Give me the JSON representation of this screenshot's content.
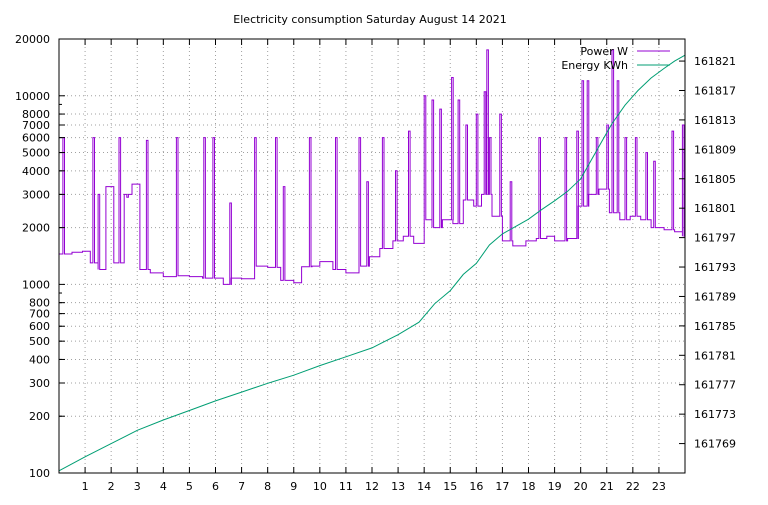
{
  "chart_data": {
    "type": "line",
    "title": "Electricity consumption Saturday August 14 2021",
    "x": {
      "label": "",
      "range": [
        0,
        24
      ],
      "ticks": [
        1,
        2,
        3,
        4,
        5,
        6,
        7,
        8,
        9,
        10,
        11,
        12,
        13,
        14,
        15,
        16,
        17,
        18,
        19,
        20,
        21,
        22,
        23
      ],
      "grid": true
    },
    "y_left": {
      "label": "",
      "scale": "log",
      "range": [
        100,
        20000
      ],
      "ticks": [
        {
          "value": 100,
          "label": "100"
        },
        {
          "value": 200,
          "label": "200"
        },
        {
          "value": 300,
          "label": "300"
        },
        {
          "value": 400,
          "label": "400"
        },
        {
          "value": 500,
          "label": "500"
        },
        {
          "value": 600,
          "label": "600"
        },
        {
          "value": 700,
          "label": "700"
        },
        {
          "value": 800,
          "label": "800"
        },
        {
          "value": 1000,
          "label": "1000"
        },
        {
          "value": 2000,
          "label": "2000"
        },
        {
          "value": 3000,
          "label": "3000"
        },
        {
          "value": 4000,
          "label": "4000"
        },
        {
          "value": 5000,
          "label": "5000"
        },
        {
          "value": 6000,
          "label": "6000"
        },
        {
          "value": 7000,
          "label": "7000"
        },
        {
          "value": 8000,
          "label": "8000"
        },
        {
          "value": 10000,
          "label": "10000"
        },
        {
          "value": 20000,
          "label": "20000"
        }
      ],
      "grid": true
    },
    "y_right": {
      "label": "",
      "scale": "linear",
      "range": [
        161765,
        161824
      ],
      "ticks": [
        161769,
        161773,
        161777,
        161781,
        161785,
        161789,
        161793,
        161797,
        161801,
        161805,
        161809,
        161813,
        161817,
        161821
      ]
    },
    "legend": {
      "placement": "top-right",
      "entries": [
        {
          "name": "Power W",
          "color": "#9400d3"
        },
        {
          "name": "Energy KWh",
          "color": "#009e73"
        }
      ]
    },
    "series": [
      {
        "name": "Power W",
        "axis": "left",
        "color": "#9400d3",
        "baseline": [
          [
            0.0,
            1450
          ],
          [
            0.5,
            1480
          ],
          [
            0.9,
            1500
          ],
          [
            1.2,
            1300
          ],
          [
            1.5,
            1200
          ],
          [
            1.8,
            3300
          ],
          [
            2.1,
            1300
          ],
          [
            2.5,
            3000
          ],
          [
            2.8,
            3400
          ],
          [
            3.1,
            1200
          ],
          [
            3.5,
            1150
          ],
          [
            4.0,
            1100
          ],
          [
            4.5,
            1110
          ],
          [
            5.0,
            1100
          ],
          [
            5.5,
            1080
          ],
          [
            6.0,
            1080
          ],
          [
            6.3,
            1000
          ],
          [
            6.6,
            1080
          ],
          [
            7.0,
            1070
          ],
          [
            7.5,
            1250
          ],
          [
            8.0,
            1230
          ],
          [
            8.5,
            1050
          ],
          [
            9.0,
            1020
          ],
          [
            9.3,
            1240
          ],
          [
            9.7,
            1250
          ],
          [
            10.0,
            1320
          ],
          [
            10.5,
            1200
          ],
          [
            11.0,
            1150
          ],
          [
            11.5,
            1250
          ],
          [
            11.9,
            1400
          ],
          [
            12.3,
            1550
          ],
          [
            12.8,
            1700
          ],
          [
            13.2,
            1800
          ],
          [
            13.6,
            1650
          ],
          [
            14.0,
            2200
          ],
          [
            14.3,
            2000
          ],
          [
            14.7,
            2200
          ],
          [
            15.1,
            2100
          ],
          [
            15.5,
            2800
          ],
          [
            15.9,
            2600
          ],
          [
            16.2,
            3000
          ],
          [
            16.6,
            2300
          ],
          [
            17.0,
            1700
          ],
          [
            17.4,
            1600
          ],
          [
            17.9,
            1700
          ],
          [
            18.3,
            1750
          ],
          [
            18.7,
            1800
          ],
          [
            19.0,
            1700
          ],
          [
            19.5,
            1750
          ],
          [
            19.9,
            2600
          ],
          [
            20.3,
            3000
          ],
          [
            20.7,
            3200
          ],
          [
            21.1,
            2400
          ],
          [
            21.5,
            2200
          ],
          [
            21.9,
            2300
          ],
          [
            22.3,
            2200
          ],
          [
            22.7,
            2000
          ],
          [
            23.2,
            1950
          ],
          [
            23.6,
            1900
          ],
          [
            23.9,
            1800
          ]
        ],
        "spikes": [
          [
            0.15,
            6000
          ],
          [
            1.3,
            6000
          ],
          [
            1.5,
            3000
          ],
          [
            2.3,
            6000
          ],
          [
            2.6,
            2900
          ],
          [
            3.35,
            5800
          ],
          [
            4.5,
            6000
          ],
          [
            5.55,
            6000
          ],
          [
            5.9,
            6000
          ],
          [
            6.55,
            2700
          ],
          [
            7.5,
            6000
          ],
          [
            8.3,
            6000
          ],
          [
            8.6,
            3300
          ],
          [
            9.6,
            6000
          ],
          [
            10.6,
            6000
          ],
          [
            11.5,
            6000
          ],
          [
            11.8,
            3500
          ],
          [
            12.4,
            6000
          ],
          [
            12.9,
            4000
          ],
          [
            13.4,
            6500
          ],
          [
            14.0,
            10000
          ],
          [
            14.3,
            9500
          ],
          [
            14.6,
            8500
          ],
          [
            15.05,
            12500
          ],
          [
            15.3,
            9500
          ],
          [
            15.6,
            7000
          ],
          [
            16.0,
            8000
          ],
          [
            16.3,
            10500
          ],
          [
            16.4,
            17500
          ],
          [
            16.5,
            6000
          ],
          [
            16.9,
            8000
          ],
          [
            17.3,
            3500
          ],
          [
            18.4,
            6000
          ],
          [
            19.4,
            6000
          ],
          [
            19.85,
            6500
          ],
          [
            20.05,
            12000
          ],
          [
            20.25,
            12000
          ],
          [
            20.6,
            6000
          ],
          [
            21.0,
            7000
          ],
          [
            21.2,
            17500
          ],
          [
            21.4,
            12000
          ],
          [
            21.7,
            6000
          ],
          [
            22.1,
            6000
          ],
          [
            22.5,
            5000
          ],
          [
            22.8,
            4500
          ],
          [
            23.5,
            6500
          ],
          [
            23.9,
            7000
          ]
        ]
      },
      {
        "name": "Energy KWh",
        "axis": "right",
        "color": "#009e73",
        "points": [
          [
            0.0,
            161765.3
          ],
          [
            1.0,
            161767.2
          ],
          [
            2.0,
            161769.0
          ],
          [
            3.0,
            161770.8
          ],
          [
            4.0,
            161772.2
          ],
          [
            5.0,
            161773.5
          ],
          [
            6.0,
            161774.8
          ],
          [
            7.0,
            161776.0
          ],
          [
            8.0,
            161777.2
          ],
          [
            9.0,
            161778.3
          ],
          [
            10.0,
            161779.6
          ],
          [
            11.0,
            161780.8
          ],
          [
            12.0,
            161782.0
          ],
          [
            13.0,
            161783.8
          ],
          [
            13.8,
            161785.5
          ],
          [
            14.4,
            161788.0
          ],
          [
            15.0,
            161789.8
          ],
          [
            15.5,
            161792.0
          ],
          [
            16.0,
            161793.5
          ],
          [
            16.5,
            161796.0
          ],
          [
            17.0,
            161797.5
          ],
          [
            17.5,
            161798.5
          ],
          [
            18.0,
            161799.5
          ],
          [
            18.5,
            161800.8
          ],
          [
            19.0,
            161802.0
          ],
          [
            19.5,
            161803.3
          ],
          [
            20.0,
            161805.0
          ],
          [
            20.4,
            161807.5
          ],
          [
            20.8,
            161810.0
          ],
          [
            21.2,
            161812.5
          ],
          [
            21.7,
            161815.0
          ],
          [
            22.2,
            161817.0
          ],
          [
            22.7,
            161818.7
          ],
          [
            23.2,
            161820.0
          ],
          [
            23.6,
            161821.0
          ],
          [
            24.0,
            161821.8
          ]
        ]
      }
    ]
  }
}
